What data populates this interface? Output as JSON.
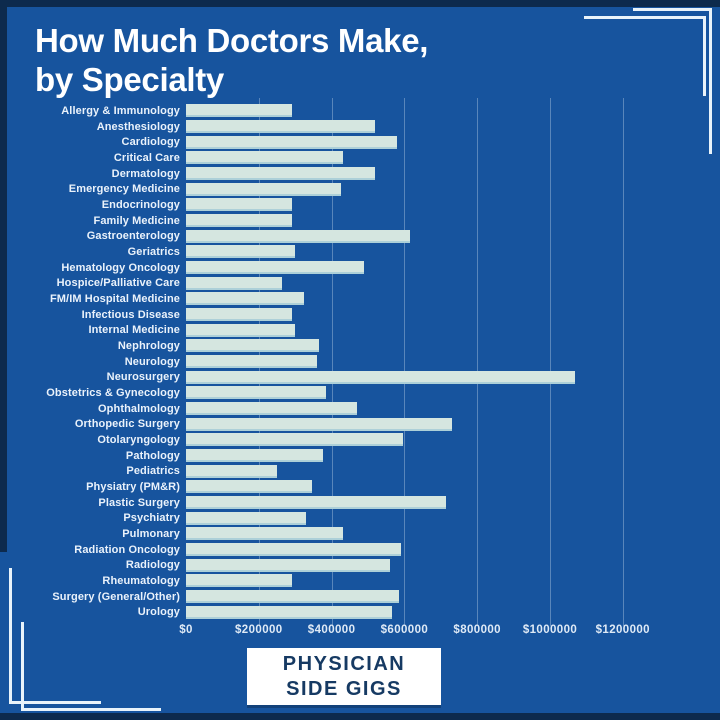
{
  "title": {
    "line1": "How Much Doctors Make,",
    "line2": "by Specialty"
  },
  "badge": {
    "line1": "PHYSICIAN",
    "line2": "SIDE GIGS"
  },
  "colors": {
    "background": "#17549E",
    "bar_fill": "#D5E6E0",
    "dark_navy_accent": "#0D2A4D",
    "title_text": "#FFFFFF",
    "label_text": "#EAF2FB",
    "tick_text": "#DFEAF6",
    "badge_text": "#163A63",
    "gridline": "rgba(230,240,250,0.32)",
    "bracket": "#E9F3FA"
  },
  "chart_data": {
    "type": "bar",
    "orientation": "horizontal",
    "title": "How Much Doctors Make, by Specialty",
    "xlabel": "",
    "ylabel": "",
    "grid": true,
    "legend": false,
    "xlim": [
      0,
      1250000
    ],
    "x_ticks": [
      "$0",
      "$200000",
      "$400000",
      "$600000",
      "$800000",
      "$1000000",
      "$1200000"
    ],
    "x_tick_values": [
      0,
      200000,
      400000,
      600000,
      800000,
      1000000,
      1200000
    ],
    "categories": [
      "Allergy & Immunology",
      "Anesthesiology",
      "Cardiology",
      "Critical Care",
      "Dermatology",
      "Emergency Medicine",
      "Endocrinology",
      "Family Medicine",
      "Gastroenterology",
      "Geriatrics",
      "Hematology Oncology",
      "Hospice/Palliative Care",
      "FM/IM Hospital Medicine",
      "Infectious Disease",
      "Internal Medicine",
      "Nephrology",
      "Neurology",
      "Neurosurgery",
      "Obstetrics & Gynecology",
      "Ophthalmology",
      "Orthopedic Surgery",
      "Otolaryngology",
      "Pathology",
      "Pediatrics",
      "Physiatry (PM&R)",
      "Plastic Surgery",
      "Psychiatry",
      "Pulmonary",
      "Radiation Oncology",
      "Radiology",
      "Rheumatology",
      "Surgery (General/Other)",
      "Urology"
    ],
    "values": [
      290000,
      520000,
      580000,
      430000,
      520000,
      425000,
      290000,
      290000,
      615000,
      300000,
      490000,
      265000,
      325000,
      290000,
      300000,
      365000,
      360000,
      1070000,
      385000,
      470000,
      730000,
      595000,
      375000,
      250000,
      345000,
      715000,
      330000,
      430000,
      590000,
      560000,
      290000,
      585000,
      565000
    ]
  }
}
